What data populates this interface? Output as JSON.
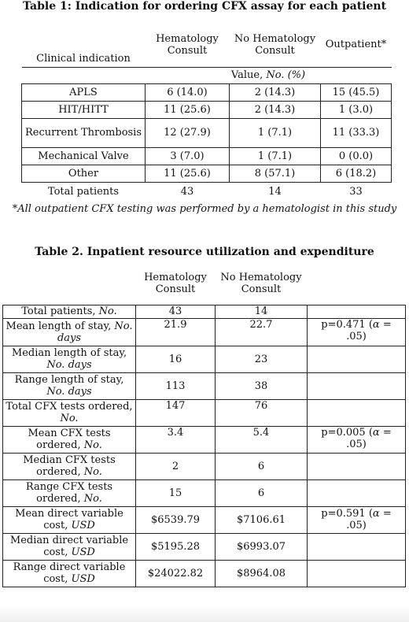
{
  "table1": {
    "title": "Table 1: Indication for ordering CFX assay for each patient",
    "col_indication": "Clinical indication",
    "col_heme": "Hematology Consult",
    "col_noheme": "No Hematology Consult",
    "col_outpt": "Outpatient*",
    "value_label": "Value, No. (%)",
    "rows": [
      {
        "label": "APLS",
        "heme": "6 (14.0)",
        "noheme": "2 (14.3)",
        "outpt": "15 (45.5)"
      },
      {
        "label": "HIT/HITT",
        "heme": "11 (25.6)",
        "noheme": "2 (14.3)",
        "outpt": "1 (3.0)"
      },
      {
        "label": "Recurrent Thrombosis",
        "heme": "12 (27.9)",
        "noheme": "1 (7.1)",
        "outpt": "11 (33.3)"
      },
      {
        "label": "Mechanical Valve",
        "heme": "3 (7.0)",
        "noheme": "1 (7.1)",
        "outpt": "0 (0.0)"
      },
      {
        "label": "Other",
        "heme": "11 (25.6)",
        "noheme": "8 (57.1)",
        "outpt": "6 (18.2)"
      }
    ],
    "total": {
      "label": "Total patients",
      "heme": "43",
      "noheme": "14",
      "outpt": "33"
    },
    "footnote": "*All outpatient CFX testing was performed by a hematologist in this study"
  },
  "table2": {
    "title": "Table 2. Inpatient resource utilization and expenditure",
    "col_heme": "Hematology Consult",
    "col_noheme": "No Hematology Consult",
    "rows": [
      {
        "label": "Total patients, ",
        "unit": "No.",
        "heme": "43",
        "noheme": "14",
        "p": ""
      },
      {
        "label": "Mean length of stay, ",
        "unit": "No. days",
        "heme": "21.9",
        "noheme": "22.7",
        "p": "p=0.471 (α = .05)"
      },
      {
        "label": "Median length of stay, ",
        "unit": "No. days",
        "heme": "16",
        "noheme": "23",
        "p": ""
      },
      {
        "label": "Range length of stay, ",
        "unit": "No. days",
        "heme": "113",
        "noheme": "38",
        "p": ""
      },
      {
        "label": "Total CFX tests ordered, ",
        "unit": "No.",
        "heme": "147",
        "noheme": "76",
        "p": ""
      },
      {
        "label": "Mean CFX tests ordered, ",
        "unit": "No.",
        "heme": "3.4",
        "noheme": "5.4",
        "p": "p=0.005 (α = .05)"
      },
      {
        "label": "Median CFX tests ordered, ",
        "unit": "No.",
        "heme": "2",
        "noheme": "6",
        "p": ""
      },
      {
        "label": "Range CFX tests ordered, ",
        "unit": "No.",
        "heme": "15",
        "noheme": "6",
        "p": ""
      },
      {
        "label": "Mean direct variable cost, ",
        "unit": "USD",
        "heme": "$6539.79",
        "noheme": "$7106.61",
        "p": "p=0.591 (α = .05)"
      },
      {
        "label": "Median direct variable cost, ",
        "unit": "USD",
        "heme": "$5195.28",
        "noheme": "$6993.07",
        "p": ""
      },
      {
        "label": "Range direct variable cost, ",
        "unit": "USD",
        "heme": "$24022.82",
        "noheme": "$8964.08",
        "p": ""
      }
    ]
  }
}
